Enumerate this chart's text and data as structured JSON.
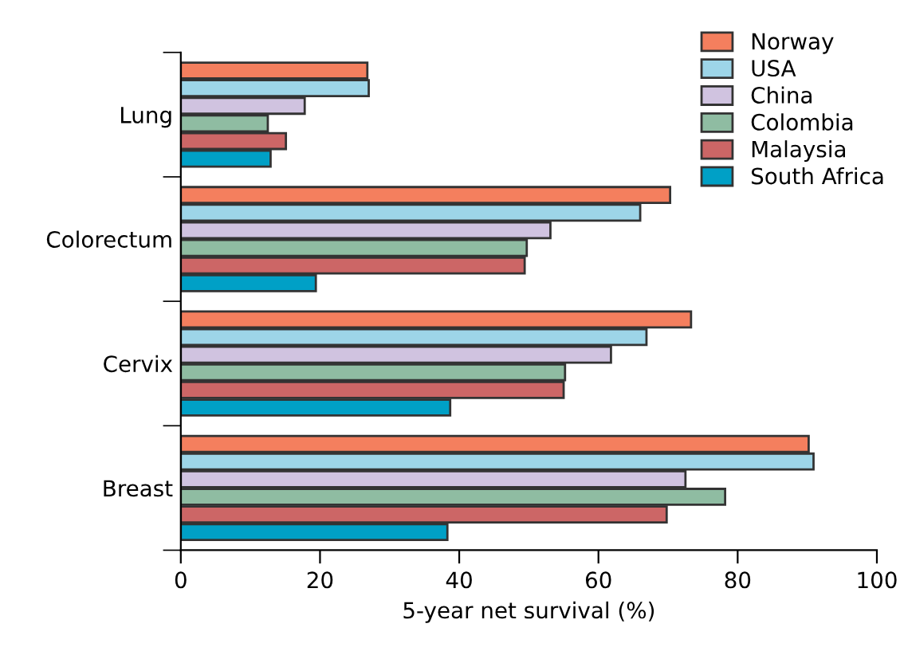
{
  "chart_data": {
    "type": "bar",
    "orientation": "horizontal",
    "xlabel": "5-year net survival (%)",
    "categories": [
      "Lung",
      "Colorectum",
      "Cervix",
      "Breast"
    ],
    "series": [
      {
        "name": "Norway",
        "color": "#f47f5e",
        "values": [
          26.8,
          70.3,
          73.3,
          90.2
        ]
      },
      {
        "name": "USA",
        "color": "#9dd5e8",
        "values": [
          27.0,
          66.0,
          66.9,
          90.9
        ]
      },
      {
        "name": "China",
        "color": "#d0c3e0",
        "values": [
          17.8,
          53.1,
          61.8,
          72.5
        ]
      },
      {
        "name": "Colombia",
        "color": "#8fbca2",
        "values": [
          12.5,
          49.7,
          55.2,
          78.2
        ]
      },
      {
        "name": "Malaysia",
        "color": "#cc6666",
        "values": [
          15.1,
          49.4,
          55.0,
          69.8
        ]
      },
      {
        "name": "South Africa",
        "color": "#00a0c6",
        "values": [
          12.9,
          19.4,
          38.7,
          38.3
        ]
      }
    ],
    "xlim": [
      0,
      100
    ],
    "xticks": [
      0,
      20,
      40,
      60,
      80,
      100
    ],
    "grid": false,
    "legend": "top right"
  }
}
